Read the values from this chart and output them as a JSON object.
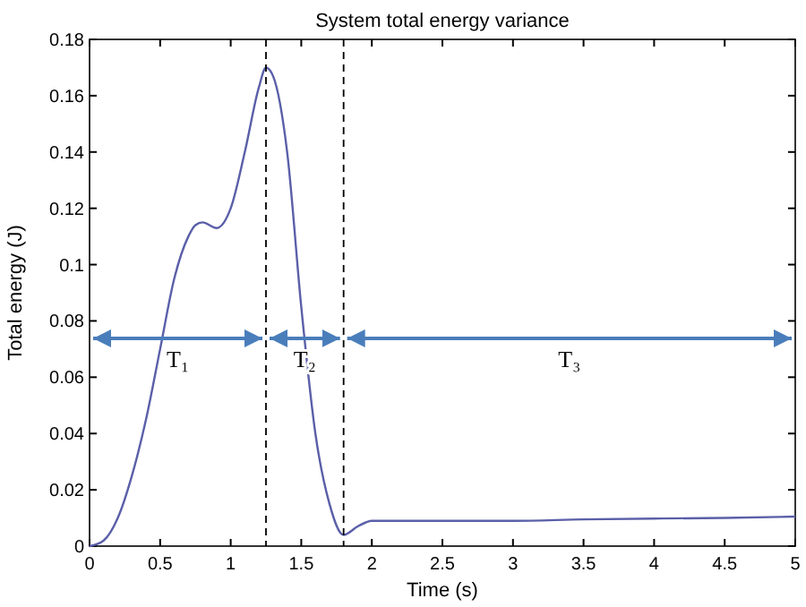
{
  "chart_data": {
    "type": "line",
    "title": "System total energy variance",
    "xlabel": "Time (s)",
    "ylabel": "Total energy (J)",
    "x": [
      0,
      0.1,
      0.2,
      0.3,
      0.4,
      0.5,
      0.6,
      0.7,
      0.75,
      0.8,
      0.9,
      1.0,
      1.1,
      1.2,
      1.25,
      1.3,
      1.4,
      1.5,
      1.6,
      1.7,
      1.8,
      1.9,
      2,
      2.5,
      3,
      3.5,
      4,
      4.5,
      5
    ],
    "series": [
      {
        "color": "#5a5fa8",
        "values": [
          0,
          0.002,
          0.01,
          0.025,
          0.045,
          0.07,
          0.095,
          0.11,
          0.114,
          0.115,
          0.113,
          0.12,
          0.14,
          0.163,
          0.17,
          0.167,
          0.14,
          0.085,
          0.04,
          0.015,
          0.004,
          0.007,
          0.009,
          0.009,
          0.009,
          0.0095,
          0.0098,
          0.01,
          0.0105
        ]
      }
    ],
    "xlim": [
      0,
      5
    ],
    "ylim": [
      0,
      0.18
    ],
    "xticks": [
      0,
      0.5,
      1,
      1.5,
      2,
      2.5,
      3,
      3.5,
      4,
      4.5,
      5
    ],
    "yticks": [
      0,
      0.02,
      0.04,
      0.06,
      0.08,
      0.1,
      0.12,
      0.14,
      0.16,
      0.18
    ],
    "grid": false,
    "marker": "none",
    "line_style": "solid",
    "ref_lines": [
      {
        "axis": "x",
        "value": 1.25,
        "line_style": "dashed",
        "color": "#000000"
      },
      {
        "axis": "x",
        "value": 1.8,
        "line_style": "dashed",
        "color": "#000000"
      }
    ],
    "annotations": [
      "T₁",
      "T₂",
      "T₃"
    ]
  }
}
